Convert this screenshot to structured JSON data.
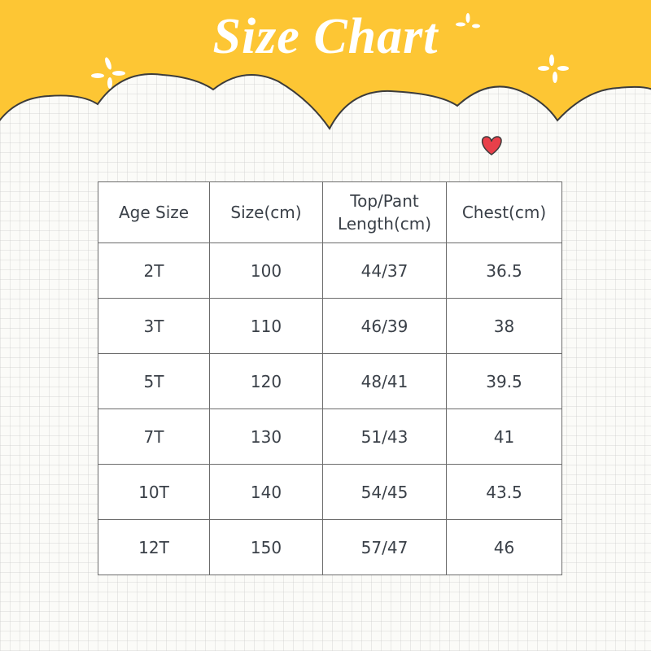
{
  "header": {
    "title": "Size Chart"
  },
  "table": {
    "columns": [
      "Age Size",
      "Size(cm)",
      "Top/Pant Length(cm)",
      "Chest(cm)"
    ],
    "rows": [
      [
        "2T",
        "100",
        "44/37",
        "36.5"
      ],
      [
        "3T",
        "110",
        "46/39",
        "38"
      ],
      [
        "5T",
        "120",
        "48/41",
        "39.5"
      ],
      [
        "7T",
        "130",
        "51/43",
        "41"
      ],
      [
        "10T",
        "140",
        "54/45",
        "43.5"
      ],
      [
        "12T",
        "150",
        "57/47",
        "46"
      ]
    ]
  }
}
